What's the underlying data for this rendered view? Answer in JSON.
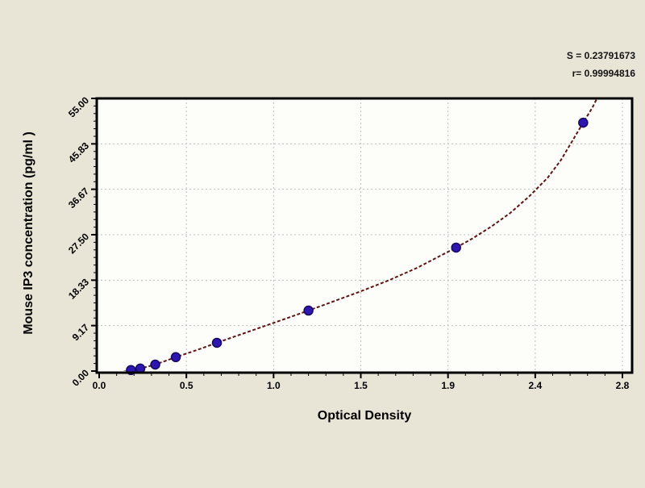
{
  "chart_data": {
    "type": "scatter",
    "title": "",
    "xlabel": "Optical Density",
    "ylabel": "Mouse IP3 concentration (pg/ml )",
    "x_tick_labels": [
      "0.0",
      "0.5",
      "1.0",
      "1.5",
      "1.9",
      "2.4",
      "2.8"
    ],
    "x_tick_values": [
      0,
      0.46667,
      0.93333,
      1.4,
      1.86667,
      2.33333,
      2.8
    ],
    "y_tick_labels": [
      "0.00",
      "9.17",
      "18.33",
      "27.50",
      "36.67",
      "45.83",
      "55.00"
    ],
    "y_tick_values": [
      0,
      9.17,
      18.33,
      27.5,
      36.67,
      45.83,
      55
    ],
    "xlim": [
      -0.01,
      2.85
    ],
    "ylim": [
      -0.3,
      55.3
    ],
    "grid": "dashed",
    "legend_position": "none",
    "points": [
      [
        0.17,
        0.2
      ],
      [
        0.22,
        0.5
      ],
      [
        0.3,
        1.3
      ],
      [
        0.41,
        2.8
      ],
      [
        0.63,
        5.7
      ],
      [
        1.12,
        12.2
      ],
      [
        1.91,
        24.9
      ],
      [
        2.59,
        50.1
      ]
    ],
    "curve_samples": [
      [
        0.1,
        -0.4
      ],
      [
        0.17,
        0.2
      ],
      [
        0.22,
        0.5
      ],
      [
        0.3,
        1.3
      ],
      [
        0.41,
        2.8
      ],
      [
        0.52,
        4.2
      ],
      [
        0.63,
        5.7
      ],
      [
        0.72,
        6.9
      ],
      [
        0.85,
        8.6
      ],
      [
        1.0,
        10.6
      ],
      [
        1.12,
        12.2
      ],
      [
        1.25,
        14.0
      ],
      [
        1.4,
        16.1
      ],
      [
        1.55,
        18.3
      ],
      [
        1.7,
        20.8
      ],
      [
        1.91,
        24.9
      ],
      [
        2.0,
        26.8
      ],
      [
        2.1,
        29.2
      ],
      [
        2.2,
        31.9
      ],
      [
        2.3,
        35.2
      ],
      [
        2.4,
        39.0
      ],
      [
        2.47,
        42.5
      ],
      [
        2.53,
        46.3
      ],
      [
        2.59,
        50.1
      ],
      [
        2.64,
        53.2
      ],
      [
        2.68,
        56.2
      ]
    ],
    "annotation": {
      "line1": "S = 0.23791673",
      "line2": "r= 0.99994816"
    },
    "colors": {
      "background": "#e8e4d6",
      "plot_bg": "#fdfdfa",
      "marker": "#2e17b0",
      "marker_edge": "#150a5e",
      "curve": "#5c1616",
      "grid": "#bdbdbd",
      "axis": "#000000",
      "text": "#000000"
    }
  }
}
